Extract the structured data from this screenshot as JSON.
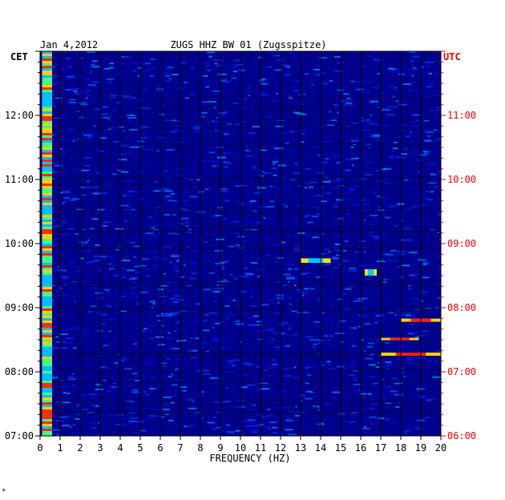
{
  "header": {
    "date": "Jan 4,2012",
    "station": "ZUGS HHZ BW 01 (Zugsspitze)",
    "left_zone": "CET",
    "right_zone": "UTC"
  },
  "footer_mark": "*",
  "colors": {
    "background_blue": "#00008b",
    "grid": "#000000",
    "left_axis": "#000000",
    "right_axis": "#ff0000",
    "hot": "#ff2000",
    "warm": "#ffd000",
    "cyan": "#00c8ff"
  },
  "chart_data": {
    "type": "heatmap",
    "title": "ZUGS HHZ BW 01 (Zugsspitze)",
    "subtitle": "Jan 4,2012",
    "xlabel": "FREQUENCY (HZ)",
    "xlim": [
      0,
      20
    ],
    "x_ticks": [
      "0",
      "1",
      "2",
      "3",
      "4",
      "5",
      "6",
      "7",
      "8",
      "9",
      "10",
      "11",
      "12",
      "13",
      "14",
      "15",
      "16",
      "17",
      "18",
      "19",
      "20"
    ],
    "left_axis": {
      "label": "CET",
      "ticks": [
        "12:00",
        "11:00",
        "10:00",
        "09:00",
        "08:00",
        "07:00"
      ],
      "hours": [
        12,
        11,
        10,
        9,
        8,
        7
      ]
    },
    "right_axis": {
      "label": "UTC",
      "ticks": [
        "11:00",
        "10:00",
        "09:00",
        "08:00",
        "07:00",
        "06:00"
      ],
      "hours": [
        11,
        10,
        9,
        8,
        7,
        6
      ]
    },
    "time_range_cet": [
      7.0,
      13.0
    ],
    "features": [
      {
        "name": "low-frequency band",
        "freq": [
          0.1,
          0.6
        ],
        "time": [
          7.0,
          13.0
        ],
        "level": "high"
      },
      {
        "name": "line 18-20 Hz",
        "freq": [
          18.0,
          20.0
        ],
        "time": [
          8.78,
          8.83
        ],
        "level": "high"
      },
      {
        "name": "line 17-20 Hz",
        "freq": [
          17.0,
          20.0
        ],
        "time": [
          8.25,
          8.3
        ],
        "level": "high"
      },
      {
        "name": "line 17-19 Hz",
        "freq": [
          17.0,
          18.9
        ],
        "time": [
          8.5,
          8.53
        ],
        "level": "high"
      },
      {
        "name": "band 13-14 Hz",
        "freq": [
          13.0,
          14.5
        ],
        "time": [
          9.7,
          9.77
        ],
        "level": "medium"
      },
      {
        "name": "band 16-17 Hz",
        "freq": [
          16.2,
          16.8
        ],
        "time": [
          9.5,
          9.6
        ],
        "level": "medium"
      }
    ]
  }
}
